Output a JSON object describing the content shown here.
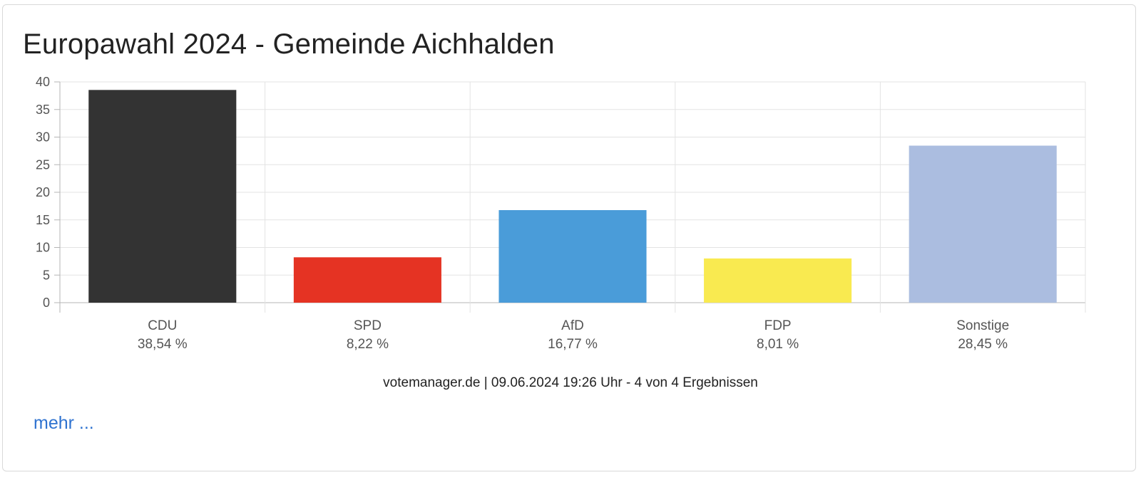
{
  "title": "Europawahl 2024 - Gemeinde Aichhalden",
  "source_line": "votemanager.de | 09.06.2024 19:26 Uhr - 4 von 4 Ergebnissen",
  "more_link": "mehr ...",
  "chart_data": {
    "type": "bar",
    "title": "Europawahl 2024 - Gemeinde Aichhalden",
    "xlabel": "",
    "ylabel": "",
    "ylim": [
      0,
      40
    ],
    "yticks": [
      0,
      5,
      10,
      15,
      20,
      25,
      30,
      35,
      40
    ],
    "grid": true,
    "categories": [
      "CDU",
      "SPD",
      "AfD",
      "FDP",
      "Sonstige"
    ],
    "values": [
      38.54,
      8.22,
      16.77,
      8.01,
      28.45
    ],
    "value_labels": [
      "38,54 %",
      "8,22 %",
      "16,77 %",
      "8,01 %",
      "28,45 %"
    ],
    "colors": [
      "#333333",
      "#e53323",
      "#4a9cd9",
      "#f9ea50",
      "#abbde0"
    ]
  }
}
